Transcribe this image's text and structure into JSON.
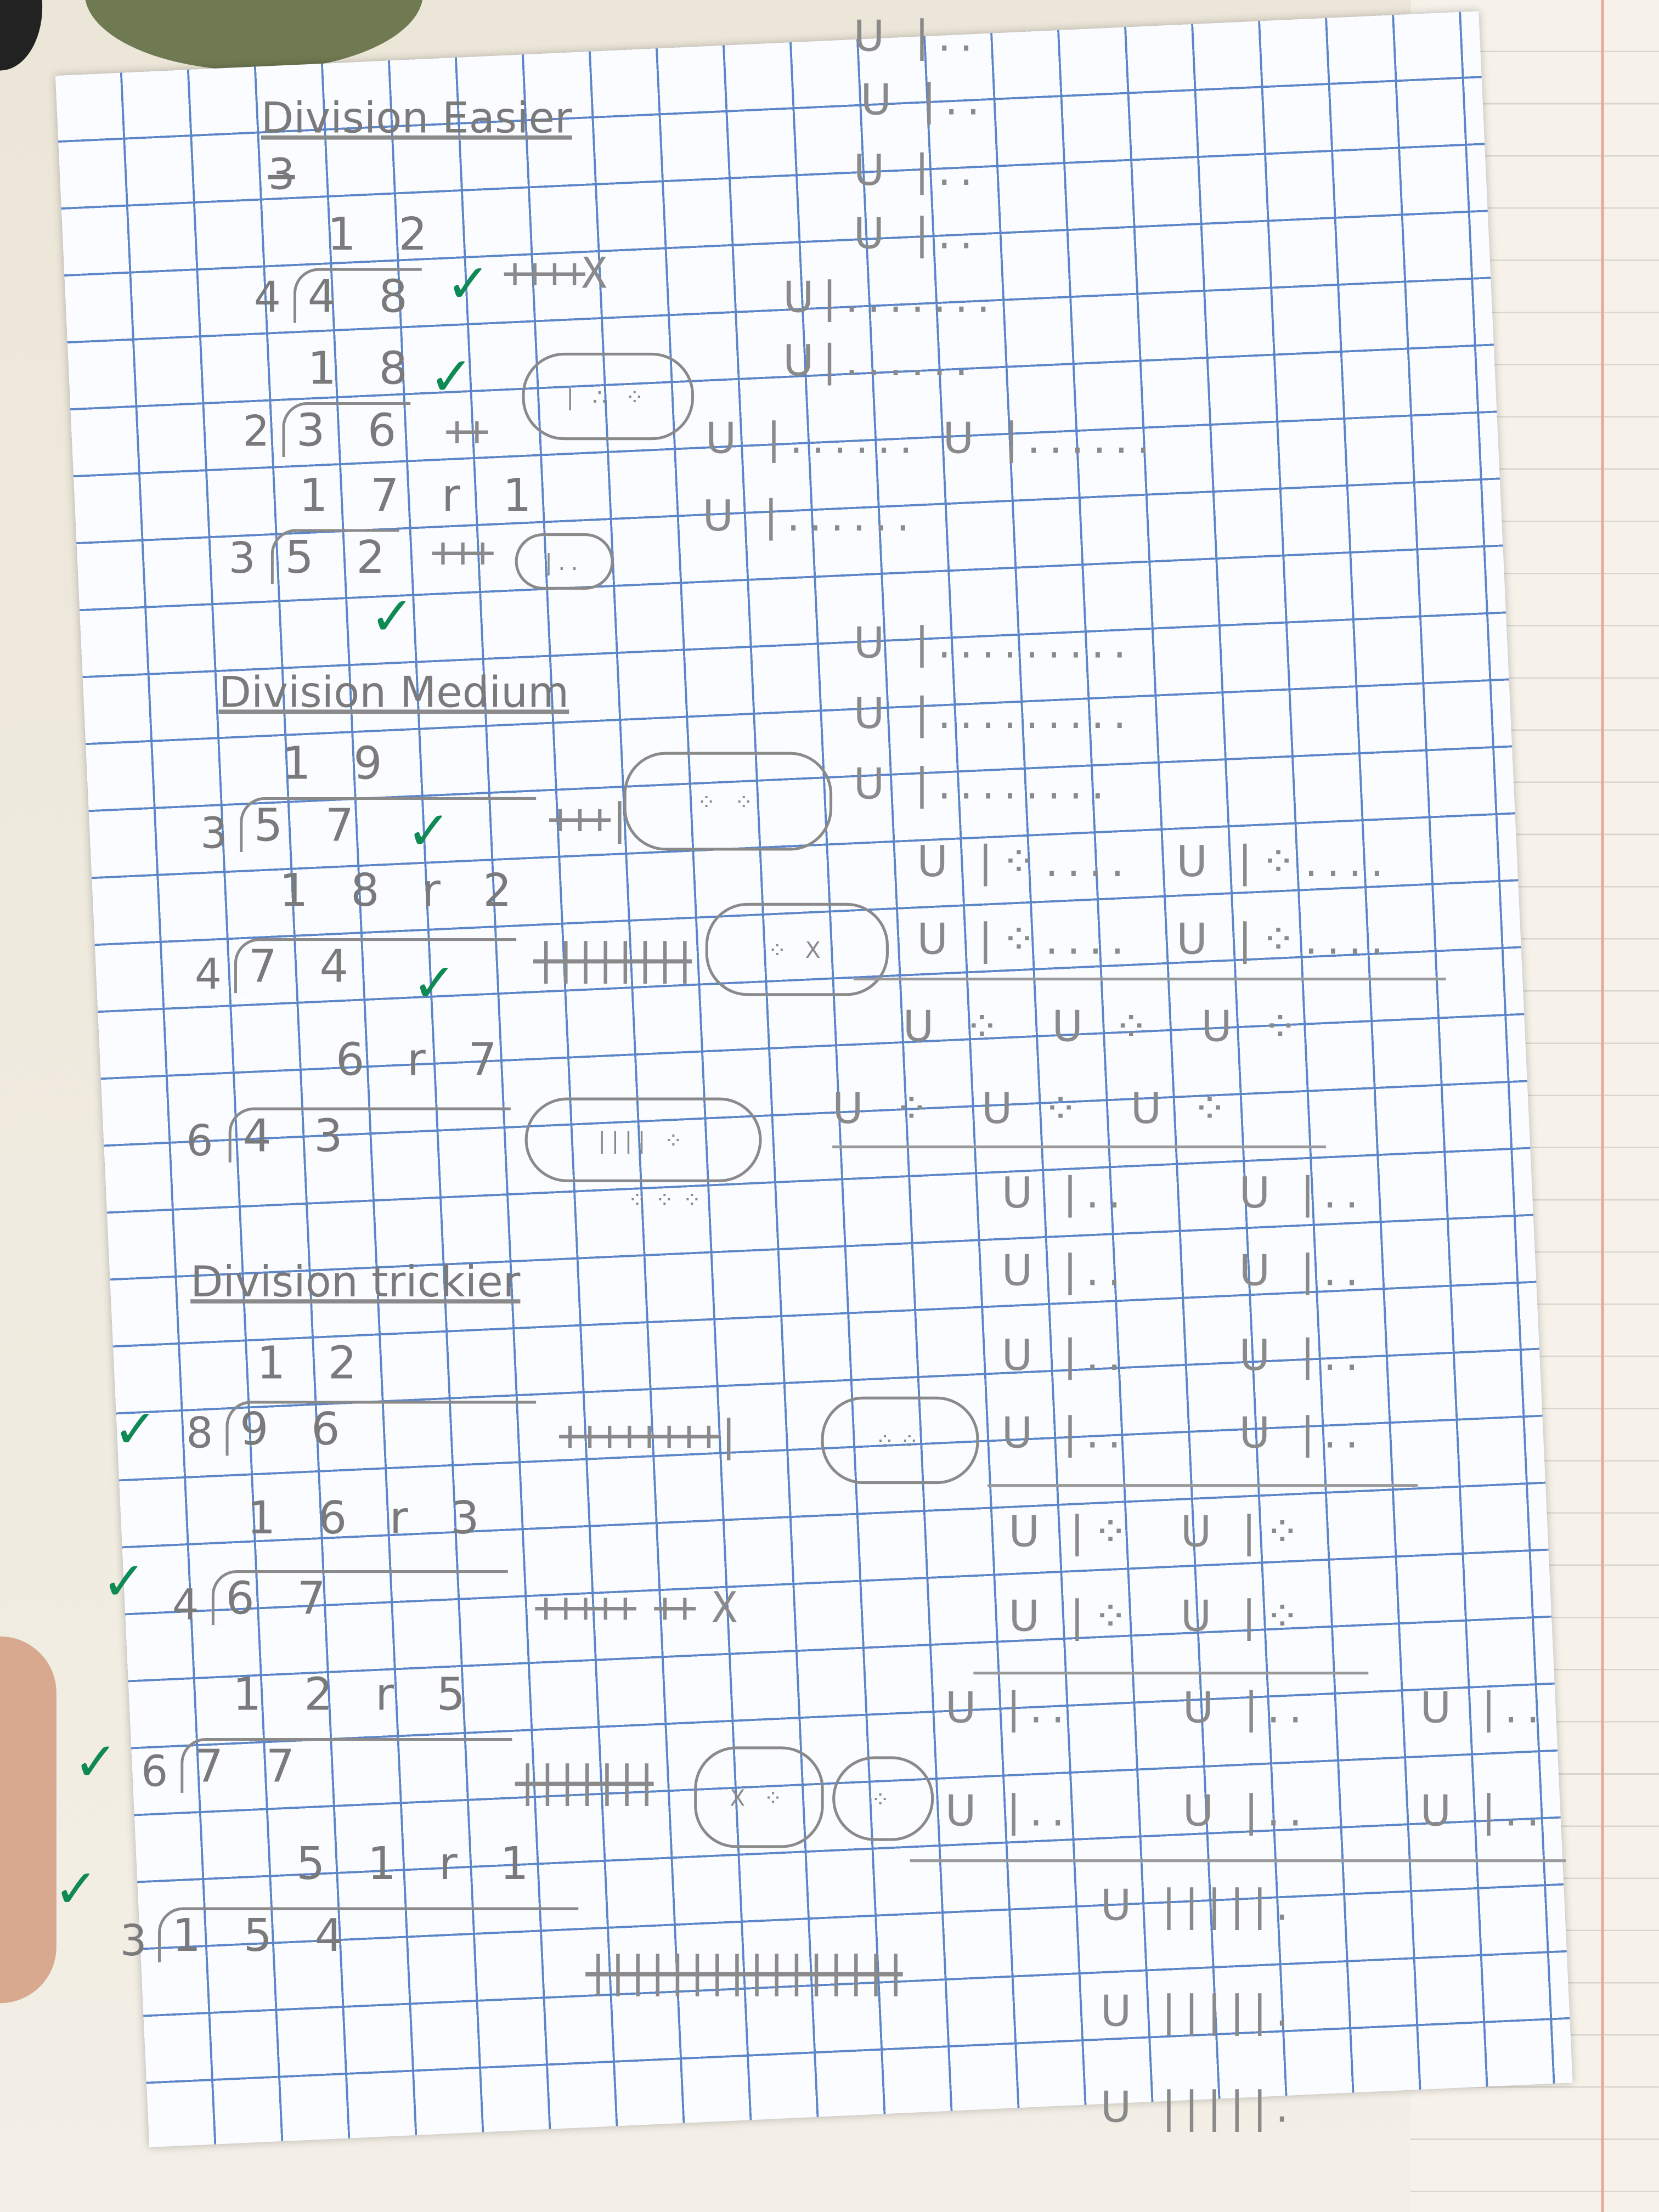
{
  "sections": [
    {
      "title": "Division Easier",
      "crossed_out": "3",
      "problems": [
        {
          "divisor": "4",
          "dividend": "4 8",
          "quotient": "1 2",
          "checked": true
        },
        {
          "divisor": "2",
          "dividend": "3 6",
          "quotient": "1 8",
          "checked": true
        },
        {
          "divisor": "3",
          "dividend": "5 2",
          "quotient": "1 7 r 1",
          "checked": true
        }
      ]
    },
    {
      "title": "Division Medium",
      "problems": [
        {
          "divisor": "3",
          "dividend": "5 7",
          "quotient": "1 9",
          "checked": true
        },
        {
          "divisor": "4",
          "dividend": "7 4",
          "quotient": "1 8 r 2",
          "checked": true
        },
        {
          "divisor": "6",
          "dividend": "4 3",
          "quotient": "6 r 7",
          "checked": false
        }
      ]
    },
    {
      "title": "Division trickier",
      "problems": [
        {
          "divisor": "8",
          "dividend": "9 6",
          "quotient": "1 2",
          "checked": true
        },
        {
          "divisor": "4",
          "dividend": "6 7",
          "quotient": "1 6 r 3",
          "checked": true
        },
        {
          "divisor": "6",
          "dividend": "7 7",
          "quotient": "1 2 r 5",
          "checked": true
        },
        {
          "divisor": "3",
          "dividend": "1 5 4",
          "quotient": "5 1 r 1",
          "checked": true
        }
      ]
    }
  ],
  "check_mark": "✓",
  "colors": {
    "check": "#0f8a55",
    "pencil": "#7a7a7a",
    "grid": "#5d86c9"
  }
}
